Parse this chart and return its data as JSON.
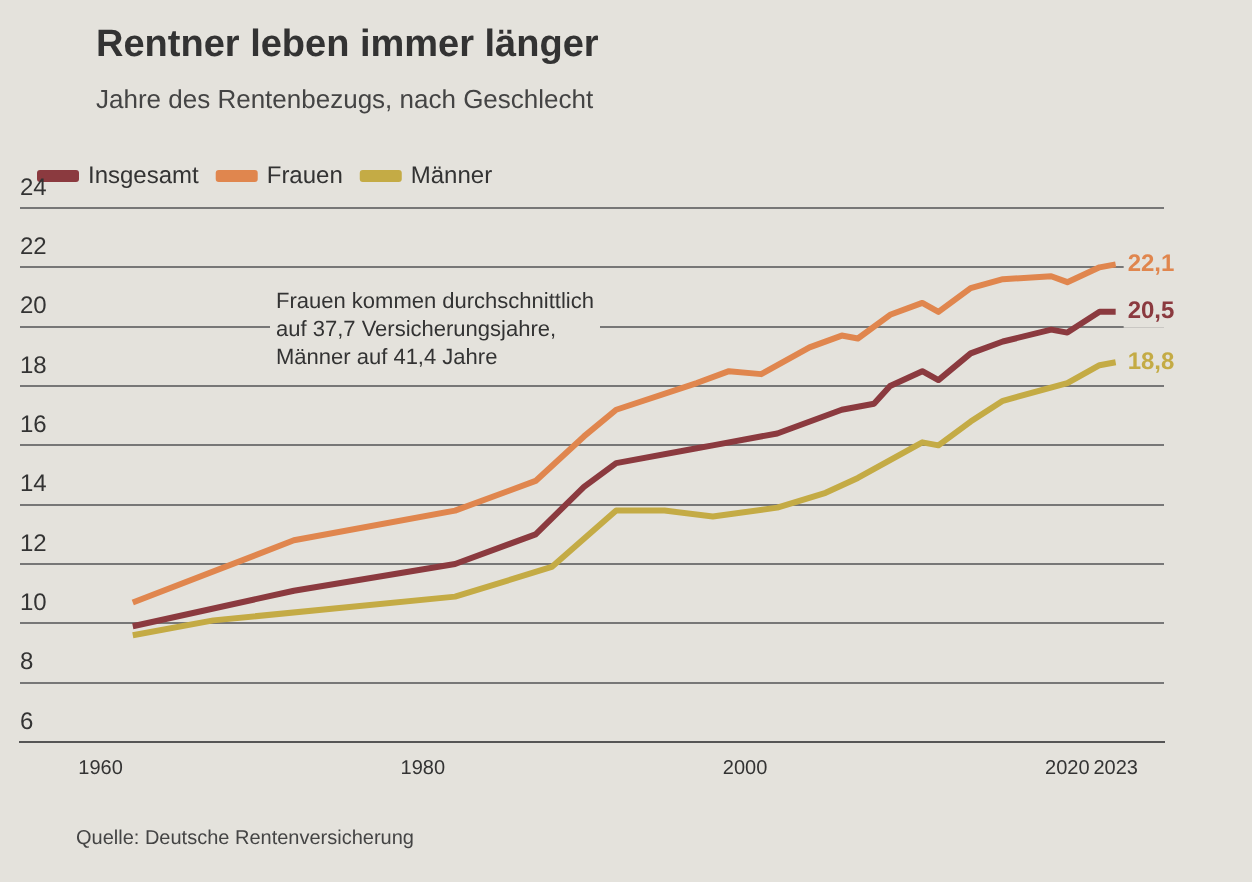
{
  "chart_data": {
    "type": "line",
    "title": "Rentner leben immer länger",
    "subtitle": "Jahre des Rentenbezugs, nach Geschlecht",
    "xlim": [
      1955,
      2026
    ],
    "xticks": [
      1960,
      1980,
      2000,
      2020,
      2023
    ],
    "ylim": [
      6,
      24
    ],
    "yticks": [
      6,
      8,
      10,
      12,
      14,
      16,
      18,
      20,
      22,
      24
    ],
    "grid": "y",
    "legend": "top left",
    "marker": "none",
    "line_style": "solid",
    "series": [
      {
        "name": "Insgesamt",
        "color": "#8b3a3f",
        "x": [
          1962,
          1972,
          1982,
          1987,
          1990,
          1992,
          1997,
          1998,
          2002,
          2006,
          2008,
          2009,
          2011,
          2012,
          2014,
          2016,
          2019,
          2020,
          2022,
          2023
        ],
        "values": [
          9.9,
          11.1,
          12.0,
          13.0,
          14.6,
          15.4,
          15.9,
          16.0,
          16.4,
          17.2,
          17.4,
          18.0,
          18.5,
          18.2,
          19.1,
          19.5,
          19.9,
          19.8,
          20.5,
          20.5
        ],
        "value_labels": [
          null,
          null,
          null,
          null,
          null,
          null,
          null,
          null,
          null,
          null,
          null,
          null,
          null,
          null,
          null,
          null,
          null,
          null,
          null,
          "20,5"
        ]
      },
      {
        "name": "Frauen",
        "color": "#e0864e",
        "x": [
          1962,
          1972,
          1982,
          1987,
          1990,
          1992,
          1997,
          1999,
          2001,
          2004,
          2006,
          2007,
          2009,
          2011,
          2012,
          2014,
          2016,
          2019,
          2020,
          2022,
          2023
        ],
        "values": [
          10.7,
          12.8,
          13.8,
          14.8,
          16.3,
          17.2,
          18.1,
          18.5,
          18.4,
          19.3,
          19.7,
          19.6,
          20.4,
          20.8,
          20.5,
          21.3,
          21.6,
          21.7,
          21.5,
          22.0,
          22.1
        ],
        "value_labels": [
          null,
          null,
          null,
          null,
          null,
          null,
          null,
          null,
          null,
          null,
          null,
          null,
          null,
          null,
          null,
          null,
          null,
          null,
          null,
          null,
          "22,1"
        ]
      },
      {
        "name": "Männer",
        "color": "#c4ab45",
        "x": [
          1962,
          1967,
          1982,
          1988,
          1992,
          1995,
          1998,
          2002,
          2005,
          2007,
          2011,
          2012,
          2014,
          2016,
          2020,
          2022,
          2023
        ],
        "values": [
          9.6,
          10.1,
          10.9,
          11.9,
          13.8,
          13.8,
          13.6,
          13.9,
          14.4,
          14.9,
          16.1,
          16.0,
          16.8,
          17.5,
          18.1,
          18.7,
          18.8
        ],
        "value_labels": [
          null,
          null,
          null,
          null,
          null,
          null,
          null,
          null,
          null,
          null,
          null,
          null,
          null,
          null,
          null,
          null,
          "18,8"
        ]
      }
    ],
    "annotations": [
      "Frauen kommen durchschnittlich\nauf 37,7 Versicherungsjahre,\nMänner auf 41,4 Jahre",
      "Quelle: Deutsche Rentenversicherung"
    ]
  }
}
